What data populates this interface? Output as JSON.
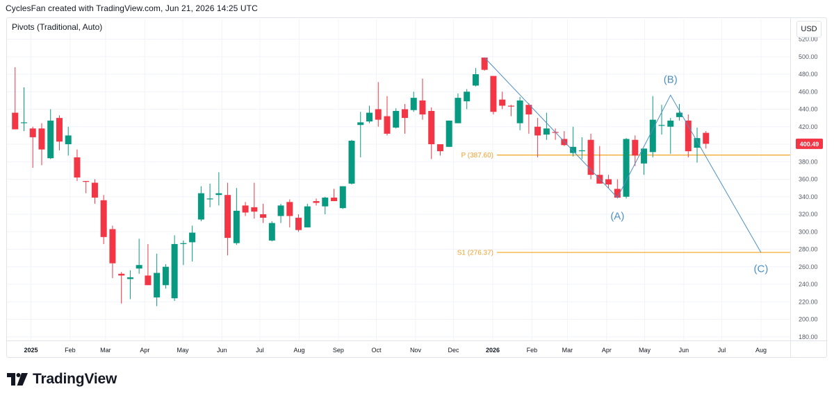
{
  "header": {
    "text": "CyclesFan created with TradingView.com, Jun 21, 2026 14:25 UTC"
  },
  "indicator": {
    "label": "Pivots (Traditional, Auto)"
  },
  "currency": {
    "label": "USD"
  },
  "logo": {
    "text": "TradingView",
    "icon": "tradingview-logo-icon"
  },
  "colors": {
    "up": "#26a69a",
    "up_candle": "#089981",
    "down": "#f23645",
    "pivot": "#f7a21b",
    "wave": "#4c8fc7",
    "price_tag": "#f23645"
  },
  "chart_data": {
    "type": "candlestick",
    "timeframe": "weekly",
    "ylim": [
      180,
      520
    ],
    "y_ticks": [
      180,
      200,
      220,
      240,
      260,
      280,
      300,
      320,
      340,
      360,
      380,
      400,
      420,
      440,
      460,
      480,
      500,
      520
    ],
    "y_tick_labels": [
      "180.00",
      "200.00",
      "220.00",
      "240.00",
      "260.00",
      "280.00",
      "300.00",
      "320.00",
      "340.00",
      "360.00",
      "380.00",
      "400.00",
      "420.00",
      "440.00",
      "460.00",
      "480.00",
      "500.00",
      "520.00"
    ],
    "x_ticks": [
      {
        "label": "2025",
        "bold": true,
        "date": "2025-01-01"
      },
      {
        "label": "Feb",
        "bold": false,
        "date": "2025-02-01"
      },
      {
        "label": "Mar",
        "bold": false,
        "date": "2025-03-01"
      },
      {
        "label": "Apr",
        "bold": false,
        "date": "2025-04-01"
      },
      {
        "label": "May",
        "bold": false,
        "date": "2025-05-01"
      },
      {
        "label": "Jun",
        "bold": false,
        "date": "2025-06-01"
      },
      {
        "label": "Jul",
        "bold": false,
        "date": "2025-07-01"
      },
      {
        "label": "Aug",
        "bold": false,
        "date": "2025-08-01"
      },
      {
        "label": "Sep",
        "bold": false,
        "date": "2025-09-01"
      },
      {
        "label": "Oct",
        "bold": false,
        "date": "2025-10-01"
      },
      {
        "label": "Nov",
        "bold": false,
        "date": "2025-11-01"
      },
      {
        "label": "Dec",
        "bold": false,
        "date": "2025-12-01"
      },
      {
        "label": "2026",
        "bold": true,
        "date": "2026-01-01"
      },
      {
        "label": "Feb",
        "bold": false,
        "date": "2026-02-01"
      },
      {
        "label": "Mar",
        "bold": false,
        "date": "2026-03-01"
      },
      {
        "label": "Apr",
        "bold": false,
        "date": "2026-04-01"
      },
      {
        "label": "May",
        "bold": false,
        "date": "2026-05-01"
      },
      {
        "label": "Jun",
        "bold": false,
        "date": "2026-06-01"
      },
      {
        "label": "Jul",
        "bold": false,
        "date": "2026-07-01"
      },
      {
        "label": "Aug",
        "bold": false,
        "date": "2026-08-01"
      }
    ],
    "candles": [
      {
        "date": "2024-12-16",
        "o": 436,
        "h": 488,
        "l": 418,
        "c": 417
      },
      {
        "date": "2024-12-23",
        "o": 425,
        "h": 465,
        "l": 415,
        "c": 425
      },
      {
        "date": "2024-12-30",
        "o": 418,
        "h": 420,
        "l": 373,
        "c": 408
      },
      {
        "date": "2025-01-06",
        "o": 418,
        "h": 424,
        "l": 376,
        "c": 394
      },
      {
        "date": "2025-01-13",
        "o": 384,
        "h": 440,
        "l": 383,
        "c": 427
      },
      {
        "date": "2025-01-20",
        "o": 430,
        "h": 433,
        "l": 393,
        "c": 403
      },
      {
        "date": "2025-01-27",
        "o": 400,
        "h": 420,
        "l": 387,
        "c": 410
      },
      {
        "date": "2025-02-03",
        "o": 385,
        "h": 394,
        "l": 358,
        "c": 362
      },
      {
        "date": "2025-02-10",
        "o": 358,
        "h": 358,
        "l": 344,
        "c": 357
      },
      {
        "date": "2025-02-17",
        "o": 356,
        "h": 360,
        "l": 332,
        "c": 339
      },
      {
        "date": "2025-02-24",
        "o": 336,
        "h": 342,
        "l": 286,
        "c": 294
      },
      {
        "date": "2025-03-03",
        "o": 303,
        "h": 307,
        "l": 247,
        "c": 264
      },
      {
        "date": "2025-03-10",
        "o": 252,
        "h": 254,
        "l": 218,
        "c": 250
      },
      {
        "date": "2025-03-17",
        "o": 246,
        "h": 256,
        "l": 223,
        "c": 248
      },
      {
        "date": "2025-03-24",
        "o": 258,
        "h": 292,
        "l": 252,
        "c": 262
      },
      {
        "date": "2025-03-31",
        "o": 250,
        "h": 286,
        "l": 242,
        "c": 239
      },
      {
        "date": "2025-04-07",
        "o": 225,
        "h": 275,
        "l": 215,
        "c": 253
      },
      {
        "date": "2025-04-14",
        "o": 239,
        "h": 263,
        "l": 235,
        "c": 260
      },
      {
        "date": "2025-04-21",
        "o": 224,
        "h": 296,
        "l": 221,
        "c": 286
      },
      {
        "date": "2025-04-28",
        "o": 286,
        "h": 290,
        "l": 262,
        "c": 287
      },
      {
        "date": "2025-05-05",
        "o": 288,
        "h": 307,
        "l": 266,
        "c": 299
      },
      {
        "date": "2025-05-12",
        "o": 314,
        "h": 352,
        "l": 312,
        "c": 344
      },
      {
        "date": "2025-05-19",
        "o": 337,
        "h": 355,
        "l": 328,
        "c": 338
      },
      {
        "date": "2025-05-26",
        "o": 342,
        "h": 368,
        "l": 330,
        "c": 344
      },
      {
        "date": "2025-06-02",
        "o": 342,
        "h": 356,
        "l": 273,
        "c": 293
      },
      {
        "date": "2025-06-09",
        "o": 287,
        "h": 350,
        "l": 285,
        "c": 324
      },
      {
        "date": "2025-06-16",
        "o": 330,
        "h": 334,
        "l": 318,
        "c": 322
      },
      {
        "date": "2025-06-23",
        "o": 328,
        "h": 356,
        "l": 315,
        "c": 323
      },
      {
        "date": "2025-06-30",
        "o": 320,
        "h": 332,
        "l": 310,
        "c": 316
      },
      {
        "date": "2025-07-07",
        "o": 290,
        "h": 312,
        "l": 289,
        "c": 310
      },
      {
        "date": "2025-07-14",
        "o": 318,
        "h": 332,
        "l": 310,
        "c": 330
      },
      {
        "date": "2025-07-21",
        "o": 334,
        "h": 337,
        "l": 305,
        "c": 318
      },
      {
        "date": "2025-07-28",
        "o": 316,
        "h": 320,
        "l": 300,
        "c": 302
      },
      {
        "date": "2025-08-04",
        "o": 305,
        "h": 332,
        "l": 305,
        "c": 329
      },
      {
        "date": "2025-08-11",
        "o": 335,
        "h": 338,
        "l": 330,
        "c": 333
      },
      {
        "date": "2025-08-18",
        "o": 329,
        "h": 340,
        "l": 320,
        "c": 339
      },
      {
        "date": "2025-08-25",
        "o": 339,
        "h": 349,
        "l": 337,
        "c": 335
      },
      {
        "date": "2025-09-01",
        "o": 327,
        "h": 352,
        "l": 326,
        "c": 352
      },
      {
        "date": "2025-09-08",
        "o": 355,
        "h": 405,
        "l": 354,
        "c": 404
      },
      {
        "date": "2025-09-15",
        "o": 422,
        "h": 437,
        "l": 385,
        "c": 425
      },
      {
        "date": "2025-09-22",
        "o": 426,
        "h": 444,
        "l": 424,
        "c": 436
      },
      {
        "date": "2025-09-29",
        "o": 440,
        "h": 471,
        "l": 420,
        "c": 428
      },
      {
        "date": "2025-10-06",
        "o": 432,
        "h": 455,
        "l": 410,
        "c": 412
      },
      {
        "date": "2025-10-13",
        "o": 419,
        "h": 441,
        "l": 418,
        "c": 438
      },
      {
        "date": "2025-10-20",
        "o": 440,
        "h": 446,
        "l": 412,
        "c": 430
      },
      {
        "date": "2025-10-27",
        "o": 439,
        "h": 460,
        "l": 437,
        "c": 453
      },
      {
        "date": "2025-11-03",
        "o": 450,
        "h": 475,
        "l": 428,
        "c": 434
      },
      {
        "date": "2025-11-10",
        "o": 438,
        "h": 442,
        "l": 383,
        "c": 400
      },
      {
        "date": "2025-11-17",
        "o": 400,
        "h": 398,
        "l": 387,
        "c": 392
      },
      {
        "date": "2025-11-24",
        "o": 397,
        "h": 427,
        "l": 397,
        "c": 427
      },
      {
        "date": "2025-12-01",
        "o": 424,
        "h": 458,
        "l": 424,
        "c": 453
      },
      {
        "date": "2025-12-08",
        "o": 449,
        "h": 463,
        "l": 440,
        "c": 460
      },
      {
        "date": "2025-12-15",
        "o": 467,
        "h": 487,
        "l": 466,
        "c": 480
      },
      {
        "date": "2025-12-22",
        "o": 499,
        "h": 499,
        "l": 484,
        "c": 485
      },
      {
        "date": "2025-12-29",
        "o": 478,
        "h": 475,
        "l": 434,
        "c": 437
      },
      {
        "date": "2026-01-05",
        "o": 451,
        "h": 460,
        "l": 440,
        "c": 444
      },
      {
        "date": "2026-01-12",
        "o": 444,
        "h": 445,
        "l": 432,
        "c": 443
      },
      {
        "date": "2026-01-19",
        "o": 424,
        "h": 454,
        "l": 416,
        "c": 450
      },
      {
        "date": "2026-01-26",
        "o": 445,
        "h": 447,
        "l": 412,
        "c": 434
      },
      {
        "date": "2026-02-02",
        "o": 420,
        "h": 430,
        "l": 385,
        "c": 410
      },
      {
        "date": "2026-02-09",
        "o": 411,
        "h": 436,
        "l": 405,
        "c": 418
      },
      {
        "date": "2026-02-16",
        "o": 414,
        "h": 418,
        "l": 405,
        "c": 413
      },
      {
        "date": "2026-02-23",
        "o": 406,
        "h": 415,
        "l": 398,
        "c": 399
      },
      {
        "date": "2026-03-02",
        "o": 390,
        "h": 420,
        "l": 386,
        "c": 397
      },
      {
        "date": "2026-03-09",
        "o": 392,
        "h": 408,
        "l": 383,
        "c": 393
      },
      {
        "date": "2026-03-16",
        "o": 405,
        "h": 412,
        "l": 360,
        "c": 365
      },
      {
        "date": "2026-03-23",
        "o": 365,
        "h": 398,
        "l": 355,
        "c": 355
      },
      {
        "date": "2026-03-30",
        "o": 360,
        "h": 365,
        "l": 350,
        "c": 354
      },
      {
        "date": "2026-04-06",
        "o": 349,
        "h": 360,
        "l": 338,
        "c": 339
      },
      {
        "date": "2026-04-13",
        "o": 340,
        "h": 407,
        "l": 338,
        "c": 406
      },
      {
        "date": "2026-04-20",
        "o": 405,
        "h": 410,
        "l": 375,
        "c": 387
      },
      {
        "date": "2026-04-27",
        "o": 378,
        "h": 395,
        "l": 365,
        "c": 395
      },
      {
        "date": "2026-05-04",
        "o": 391,
        "h": 455,
        "l": 385,
        "c": 428
      },
      {
        "date": "2026-05-11",
        "o": 422,
        "h": 445,
        "l": 411,
        "c": 422
      },
      {
        "date": "2026-05-18",
        "o": 420,
        "h": 430,
        "l": 389,
        "c": 427
      },
      {
        "date": "2026-05-25",
        "o": 431,
        "h": 446,
        "l": 427,
        "c": 436
      },
      {
        "date": "2026-06-01",
        "o": 427,
        "h": 434,
        "l": 385,
        "c": 392
      },
      {
        "date": "2026-06-08",
        "o": 396,
        "h": 419,
        "l": 379,
        "c": 407
      },
      {
        "date": "2026-06-15",
        "o": 413,
        "h": 415,
        "l": 395,
        "c": 400.49
      }
    ],
    "last_price": {
      "value": 400.49,
      "label": "400.49"
    },
    "pivot_levels": [
      {
        "label": "P (387.60)",
        "value": 387.6,
        "from_date": "2026-01-01"
      },
      {
        "label": "S1 (276.37)",
        "value": 276.37,
        "from_date": "2026-01-01"
      }
    ],
    "wave_path": [
      {
        "date": "2025-12-22",
        "value": 499
      },
      {
        "date": "2026-04-06",
        "value": 339
      },
      {
        "date": "2026-05-18",
        "value": 456
      },
      {
        "date": "2026-08-01",
        "value": 276.37
      }
    ],
    "wave_labels": [
      {
        "label": "(A)",
        "date": "2026-04-06",
        "value": 318
      },
      {
        "label": "(B)",
        "date": "2026-05-18",
        "value": 474
      },
      {
        "label": "(C)",
        "date": "2026-08-01",
        "value": 258
      }
    ]
  }
}
